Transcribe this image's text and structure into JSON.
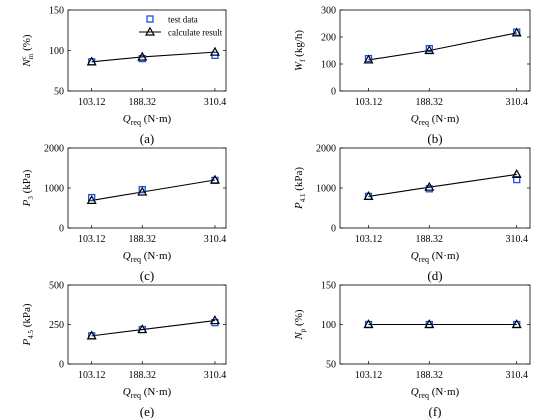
{
  "figure": {
    "legend_labels": {
      "test": "test data",
      "calc": "calculate result"
    },
    "colors": {
      "test": "#1f4fe0",
      "calc": "#000000"
    }
  },
  "chart_data": [
    {
      "id": "a",
      "type": "line",
      "panel_label": "(a)",
      "categories": [
        "103.12",
        "188.32",
        "310.4"
      ],
      "xlabel": "Q_req (N·m)",
      "ylabel": "N_m^c (%)",
      "ylim": [
        50,
        150
      ],
      "yticks": [
        50,
        100,
        150
      ],
      "series": [
        {
          "name": "test data",
          "kind": "markers",
          "values": [
            86,
            90,
            94
          ]
        },
        {
          "name": "calculate result",
          "kind": "line",
          "values": [
            86,
            92,
            98
          ]
        }
      ],
      "legend": "top-right"
    },
    {
      "id": "b",
      "type": "line",
      "panel_label": "(b)",
      "categories": [
        "103.12",
        "188.32",
        "310.4"
      ],
      "xlabel": "Q_req (N·m)",
      "ylabel": "W_f (kg/h)",
      "ylim": [
        0,
        300
      ],
      "yticks": [
        0,
        100,
        200,
        300
      ],
      "series": [
        {
          "name": "test data",
          "kind": "markers",
          "values": [
            120,
            157,
            218
          ]
        },
        {
          "name": "calculate result",
          "kind": "line",
          "values": [
            115,
            150,
            215
          ]
        }
      ]
    },
    {
      "id": "c",
      "type": "line",
      "panel_label": "(c)",
      "categories": [
        "103.12",
        "188.32",
        "310.4"
      ],
      "xlabel": "Q_req (N·m)",
      "ylabel": "P_3 (kPa)",
      "ylim": [
        0,
        2000
      ],
      "yticks": [
        0,
        1000,
        2000
      ],
      "series": [
        {
          "name": "test data",
          "kind": "markers",
          "values": [
            760,
            960,
            1190
          ]
        },
        {
          "name": "calculate result",
          "kind": "line",
          "values": [
            690,
            900,
            1200
          ]
        }
      ]
    },
    {
      "id": "d",
      "type": "line",
      "panel_label": "(d)",
      "categories": [
        "103.12",
        "188.32",
        "310.4"
      ],
      "xlabel": "Q_req (N·m)",
      "ylabel": "P_4.1 (kPa)",
      "ylim": [
        0,
        2000
      ],
      "yticks": [
        0,
        1000,
        2000
      ],
      "series": [
        {
          "name": "test data",
          "kind": "markers",
          "values": [
            790,
            980,
            1210
          ]
        },
        {
          "name": "calculate result",
          "kind": "line",
          "values": [
            790,
            1020,
            1340
          ]
        }
      ]
    },
    {
      "id": "e",
      "type": "line",
      "panel_label": "(e)",
      "categories": [
        "103.12",
        "188.32",
        "310.4"
      ],
      "xlabel": "Q_req (N·m)",
      "ylabel": "P_4.5 (kPa)",
      "ylim": [
        0,
        500
      ],
      "yticks": [
        0,
        250,
        500
      ],
      "series": [
        {
          "name": "test data",
          "kind": "markers",
          "values": [
            178,
            218,
            262
          ]
        },
        {
          "name": "calculate result",
          "kind": "line",
          "values": [
            178,
            218,
            275
          ]
        }
      ]
    },
    {
      "id": "f",
      "type": "line",
      "panel_label": "(f)",
      "categories": [
        "103.12",
        "188.32",
        "310.4"
      ],
      "xlabel": "Q_req (N·m)",
      "ylabel": "N_p (%)",
      "ylim": [
        50,
        150
      ],
      "yticks": [
        50,
        100,
        150
      ],
      "series": [
        {
          "name": "test data",
          "kind": "markers",
          "values": [
            100,
            100,
            100
          ]
        },
        {
          "name": "calculate result",
          "kind": "line",
          "values": [
            100,
            100,
            100
          ]
        }
      ]
    }
  ]
}
